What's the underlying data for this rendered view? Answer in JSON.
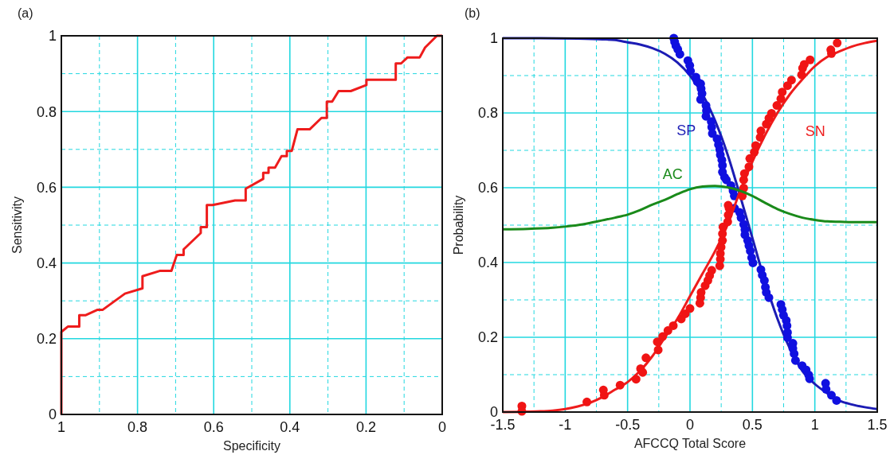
{
  "chart_data": [
    {
      "type": "line",
      "title": "(a)",
      "xlabel": "Specificity",
      "ylabel": "Sensitivity",
      "xlim": [
        1,
        0
      ],
      "ylim": [
        0,
        1
      ],
      "xticks": [
        1,
        {
          "value": 0.9,
          "label": null
        },
        0.8,
        {
          "value": 0.7,
          "label": null
        },
        0.6,
        {
          "value": 0.5,
          "label": null
        },
        0.4,
        {
          "value": 0.3,
          "label": null
        },
        0.2,
        {
          "value": 0.1,
          "label": null
        },
        0
      ],
      "yticks": [
        0,
        {
          "value": 0.1,
          "label": null
        },
        0.2,
        {
          "value": 0.3,
          "label": null
        },
        0.4,
        {
          "value": 0.5,
          "label": null
        },
        0.6,
        {
          "value": 0.7,
          "label": null
        },
        0.8,
        {
          "value": 0.9,
          "label": null
        },
        1
      ],
      "grid": true,
      "series": [
        {
          "color": "#ee1c1c",
          "x": [
            1,
            1,
            0.983,
            0.953,
            0.953,
            0.937,
            0.906,
            0.892,
            0.833,
            0.787,
            0.787,
            0.742,
            0.711,
            0.697,
            0.679,
            0.679,
            0.634,
            0.634,
            0.618,
            0.618,
            0.603,
            0.544,
            0.516,
            0.516,
            0.47,
            0.47,
            0.456,
            0.456,
            0.439,
            0.422,
            0.408,
            0.408,
            0.395,
            0.38,
            0.348,
            0.317,
            0.303,
            0.303,
            0.289,
            0.272,
            0.24,
            0.199,
            0.199,
            0.122,
            0.122,
            0.108,
            0.091,
            0.059,
            0.045,
            0.014,
            0
          ],
          "values": [
            0,
            0.218,
            0.232,
            0.232,
            0.262,
            0.262,
            0.276,
            0.276,
            0.319,
            0.333,
            0.365,
            0.379,
            0.379,
            0.421,
            0.421,
            0.436,
            0.479,
            0.495,
            0.495,
            0.553,
            0.553,
            0.565,
            0.565,
            0.596,
            0.622,
            0.638,
            0.638,
            0.652,
            0.652,
            0.682,
            0.682,
            0.696,
            0.696,
            0.753,
            0.753,
            0.783,
            0.783,
            0.826,
            0.826,
            0.854,
            0.854,
            0.87,
            0.884,
            0.884,
            0.927,
            0.927,
            0.943,
            0.943,
            0.969,
            1,
            1
          ]
        }
      ]
    },
    {
      "type": "line",
      "title": "(b)",
      "xlabel": "AFCCQ Total Score",
      "ylabel": "Probability",
      "xlim": [
        -1.5,
        1.5
      ],
      "ylim": [
        0,
        1
      ],
      "xticks": [
        -1.5,
        {
          "value": -1.25,
          "label": null
        },
        -1,
        {
          "value": -0.75,
          "label": null
        },
        -0.5,
        {
          "value": -0.25,
          "label": null
        },
        0,
        {
          "value": 0.25,
          "label": null
        },
        0.5,
        {
          "value": 0.75,
          "label": null
        },
        1,
        {
          "value": 1.25,
          "label": null
        },
        1.5
      ],
      "yticks": [
        0,
        {
          "value": 0.1,
          "label": null
        },
        0.2,
        {
          "value": 0.3,
          "label": null
        },
        0.4,
        {
          "value": 0.5,
          "label": null
        },
        0.6,
        {
          "value": 0.7,
          "label": null
        },
        0.8,
        {
          "value": 0.9,
          "label": null
        },
        1
      ],
      "grid": true,
      "series": [
        {
          "name": "SP",
          "type": "line",
          "color": "#1c1cb4",
          "x": [
            -1.5,
            -1.2,
            -0.9,
            -0.7,
            -0.6,
            -0.5,
            -0.4,
            -0.3,
            -0.2,
            -0.1,
            0,
            0.1,
            0.2,
            0.3,
            0.4,
            0.5,
            0.6,
            0.7,
            0.8,
            0.9,
            1,
            1.1,
            1.2,
            1.3,
            1.4,
            1.5
          ],
          "values": [
            1,
            1,
            0.999,
            0.997,
            0.995,
            0.989,
            0.983,
            0.973,
            0.958,
            0.935,
            0.9,
            0.85,
            0.78,
            0.69,
            0.58,
            0.465,
            0.35,
            0.25,
            0.17,
            0.11,
            0.075,
            0.05,
            0.03,
            0.02,
            0.013,
            0.008
          ]
        },
        {
          "type": "scatter",
          "color": "#1010e0",
          "marker": "circle",
          "x": [
            -0.13,
            -0.123,
            -0.113,
            -0.098,
            -0.081,
            -0.017,
            -0.002,
            0.004,
            0.047,
            0.058,
            0.085,
            0.089,
            0.096,
            0.085,
            0.128,
            0.132,
            0.128,
            0.17,
            0.174,
            0.179,
            0.217,
            0.228,
            0.238,
            0.243,
            0.255,
            0.26,
            0.26,
            0.277,
            0.291,
            0.328,
            0.345,
            0.355,
            0.357,
            0.398,
            0.409,
            0.43,
            0.44,
            0.44,
            0.462,
            0.472,
            0.483,
            0.494,
            0.504,
            0.568,
            0.579,
            0.596,
            0.604,
            0.611,
            0.632,
            0.728,
            0.739,
            0.749,
            0.771,
            0.777,
            0.781,
            0.781,
            0.824,
            0.824,
            0.834,
            0.845,
            0.898,
            0.93,
            0.951,
            0.958,
            1.086,
            1.09,
            1.133,
            1.174
          ],
          "values": [
            1,
            0.99,
            0.98,
            0.97,
            0.957,
            0.94,
            0.927,
            0.912,
            0.896,
            0.884,
            0.878,
            0.865,
            0.852,
            0.836,
            0.82,
            0.806,
            0.791,
            0.777,
            0.762,
            0.745,
            0.731,
            0.715,
            0.702,
            0.688,
            0.674,
            0.66,
            0.642,
            0.628,
            0.621,
            0.606,
            0.592,
            0.578,
            0.545,
            0.534,
            0.52,
            0.502,
            0.488,
            0.474,
            0.459,
            0.445,
            0.431,
            0.413,
            0.399,
            0.381,
            0.366,
            0.352,
            0.334,
            0.32,
            0.306,
            0.288,
            0.274,
            0.259,
            0.245,
            0.231,
            0.213,
            0.199,
            0.184,
            0.17,
            0.156,
            0.138,
            0.124,
            0.113,
            0.099,
            0.089,
            0.077,
            0.061,
            0.045,
            0.031
          ]
        },
        {
          "name": "SN",
          "type": "line",
          "color": "#ee1c1c",
          "x": [
            -1.5,
            -1.3,
            -1.2,
            -1.1,
            -1,
            -0.9,
            -0.8,
            -0.7,
            -0.6,
            -0.5,
            -0.4,
            -0.3,
            -0.2,
            -0.1,
            0,
            0.1,
            0.2,
            0.3,
            0.4,
            0.5,
            0.6,
            0.7,
            0.8,
            0.9,
            1,
            1.1,
            1.2,
            1.3,
            1.4,
            1.5
          ],
          "values": [
            0,
            0.001,
            0.002,
            0.004,
            0.008,
            0.015,
            0.025,
            0.04,
            0.06,
            0.08,
            0.11,
            0.15,
            0.2,
            0.25,
            0.31,
            0.37,
            0.43,
            0.5,
            0.59,
            0.67,
            0.74,
            0.8,
            0.85,
            0.89,
            0.925,
            0.95,
            0.965,
            0.978,
            0.987,
            0.993
          ]
        },
        {
          "type": "scatter",
          "color": "#f01414",
          "marker": "circle",
          "x": [
            -1.347,
            -1.347,
            -0.826,
            -0.694,
            -0.687,
            -0.56,
            -0.432,
            -0.396,
            -0.379,
            -0.353,
            -0.262,
            -0.255,
            -0.219,
            -0.177,
            -0.134,
            -0.07,
            -0.038,
            0,
            0.079,
            0.085,
            0.089,
            0.121,
            0.143,
            0.157,
            0.174,
            0.238,
            0.243,
            0.243,
            0.249,
            0.26,
            0.26,
            0.264,
            0.302,
            0.306,
            0.313,
            0.306,
            0.419,
            0.43,
            0.43,
            0.436,
            0.472,
            0.479,
            0.515,
            0.526,
            0.562,
            0.568,
            0.611,
            0.632,
            0.653,
            0.696,
            0.728,
            0.739,
            0.781,
            0.813,
            0.894,
            0.902,
            0.915,
            0.962,
            1.128,
            1.133,
            1.179
          ],
          "values": [
            0.016,
            0.002,
            0.027,
            0.059,
            0.045,
            0.072,
            0.088,
            0.116,
            0.106,
            0.145,
            0.188,
            0.166,
            0.202,
            0.218,
            0.231,
            0.249,
            0.263,
            0.277,
            0.291,
            0.306,
            0.32,
            0.338,
            0.352,
            0.365,
            0.379,
            0.391,
            0.409,
            0.424,
            0.441,
            0.459,
            0.477,
            0.495,
            0.509,
            0.527,
            0.545,
            0.553,
            0.578,
            0.599,
            0.621,
            0.638,
            0.656,
            0.678,
            0.695,
            0.713,
            0.735,
            0.752,
            0.77,
            0.786,
            0.799,
            0.82,
            0.838,
            0.856,
            0.873,
            0.888,
            0.902,
            0.92,
            0.93,
            0.942,
            0.969,
            0.959,
            0.987
          ]
        },
        {
          "name": "AC",
          "type": "line",
          "color": "#1a8a1a",
          "x": [
            -1.5,
            -1.3,
            -1.1,
            -1,
            -0.9,
            -0.8,
            -0.7,
            -0.6,
            -0.5,
            -0.4,
            -0.3,
            -0.2,
            -0.1,
            0,
            0.1,
            0.2,
            0.3,
            0.4,
            0.5,
            0.6,
            0.7,
            0.8,
            0.9,
            1,
            1.1,
            1.2,
            1.3,
            1.5
          ],
          "values": [
            0.489,
            0.49,
            0.493,
            0.496,
            0.5,
            0.506,
            0.513,
            0.52,
            0.528,
            0.54,
            0.555,
            0.568,
            0.583,
            0.596,
            0.603,
            0.605,
            0.601,
            0.592,
            0.578,
            0.56,
            0.543,
            0.53,
            0.52,
            0.514,
            0.51,
            0.509,
            0.508,
            0.508
          ]
        }
      ]
    }
  ]
}
